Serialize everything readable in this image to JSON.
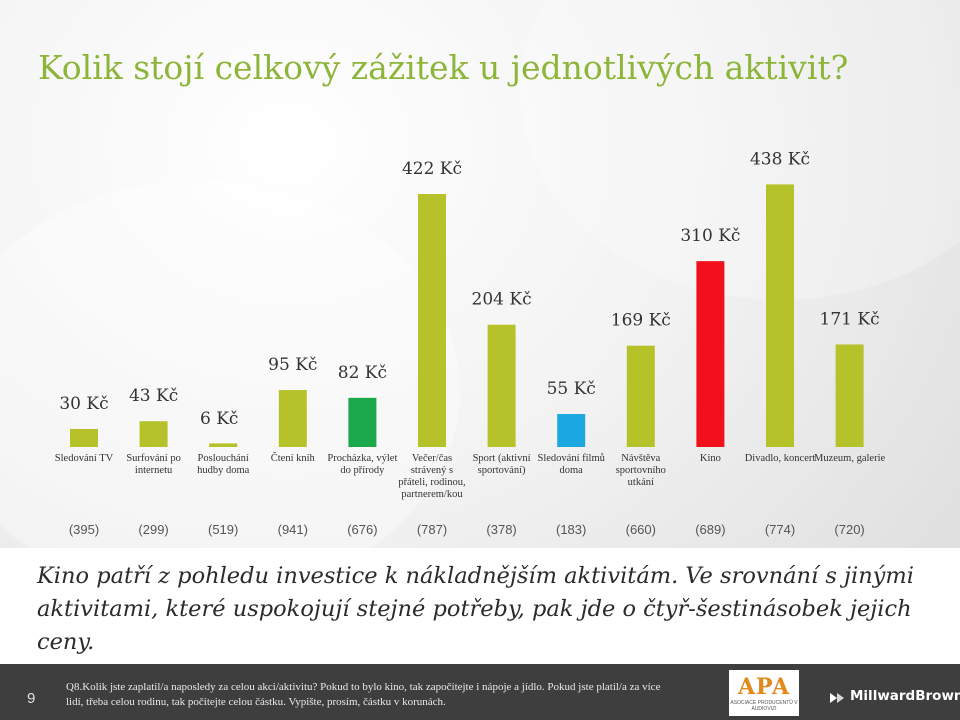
{
  "title": "Kolik stojí celkový zážitek u jednotlivých aktivit?",
  "chart_data": {
    "type": "bar",
    "title": "Kolik stojí celkový zážitek u jednotlivých aktivit?",
    "categories": [
      "Sledování TV",
      "Surfování po internetu",
      "Poslouchání hudby doma",
      "Čtení knih",
      "Procházka, výlet do přírody",
      "Večer/čas strávený s přáteli, rodinou, partnerem/kou",
      "Sport (aktivní sportování)",
      "Sledování filmů doma",
      "Návštěva sportovního utkání",
      "Kino",
      "Divadlo, koncert",
      "Muzeum, galerie"
    ],
    "category_lines": [
      [
        "Sledování TV"
      ],
      [
        "Surfování po",
        "internetu"
      ],
      [
        "Poslouchání",
        "hudby doma"
      ],
      [
        "Čtení knih"
      ],
      [
        "Procházka, výlet",
        "do přírody"
      ],
      [
        "Večer/čas",
        "strávený s",
        "přáteli, rodinou,",
        "partnerem/kou"
      ],
      [
        "Sport (aktivní",
        "sportování)"
      ],
      [
        "Sledování filmů",
        "doma"
      ],
      [
        "Návštěva",
        "sportovního",
        "utkání"
      ],
      [
        "Kino"
      ],
      [
        "Divadlo, koncert"
      ],
      [
        "Muzeum, galerie"
      ]
    ],
    "values": [
      30,
      43,
      6,
      95,
      82,
      422,
      204,
      55,
      169,
      310,
      438,
      171
    ],
    "value_labels": [
      "30 Kč",
      "43 Kč",
      "6 Kč",
      "95 Kč",
      "82 Kč",
      "422 Kč",
      "204 Kč",
      "55 Kč",
      "169 Kč",
      "310 Kč",
      "438 Kč",
      "171 Kč"
    ],
    "counts": [
      "(395)",
      "(299)",
      "(519)",
      "(941)",
      "(676)",
      "(787)",
      "(378)",
      "(183)",
      "(660)",
      "(689)",
      "(774)",
      "(720)"
    ],
    "unit": "Kč",
    "ylim": [
      0,
      450
    ],
    "colors": [
      "#b5c22a",
      "#b5c22a",
      "#b5c22a",
      "#b5c22a",
      "#1aa84a",
      "#b5c22a",
      "#b5c22a",
      "#1ba8e0",
      "#b5c22a",
      "#f2101c",
      "#b5c22a",
      "#b5c22a"
    ],
    "label_colors": [
      "#333333",
      "#333333",
      "#333333",
      "#333333",
      "#333333",
      "#333333",
      "#333333",
      "#333333",
      "#333333",
      "#333333",
      "#333333",
      "#333333"
    ],
    "legend": "none",
    "grid": false
  },
  "conclusion": "Kino patří z pohledu investice k nákladnějším aktivitám. Ve srovnání s jinými aktivitami, které uspokojují stejné potřeby, pak jde o čtyř-šestinásobek jejich ceny.",
  "footer": {
    "page_number": "9",
    "footnote": "Q8.Kolik jste zaplatil/a naposledy za celou akci/aktivitu? Pokud to bylo kino, tak započítejte i nápoje a jídlo. Pokud jste platil/a za více lidí, třeba celou rodinu, tak počítejte celou částku. Vypište, prosím, částku v korunách.",
    "apa_logo_text": "APA",
    "apa_logo_subtext": "ASOCIACE PRODUCENTŮ V AUDIOVIZI",
    "brand": "MillwardBrown",
    "brand_icon": "millwardbrown-mark-icon"
  }
}
